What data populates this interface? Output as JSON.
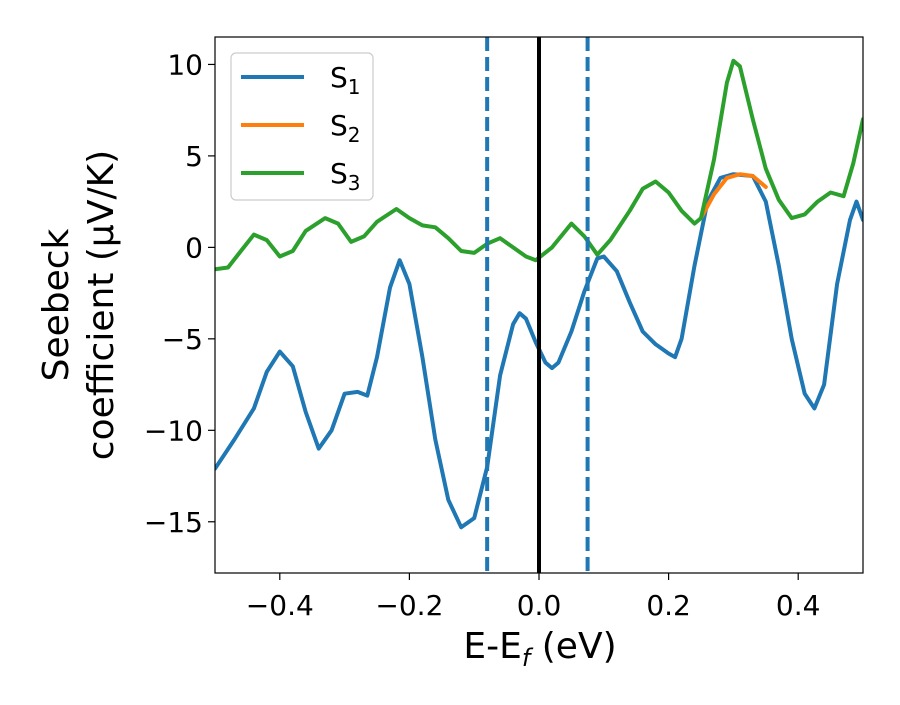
{
  "chart_data": {
    "type": "line",
    "title": "",
    "xlabel": "E-E_f (eV)",
    "xlabel_parts": {
      "main": "E-E",
      "sub": "f",
      "unit": " (eV)"
    },
    "ylabel_line1": "Seebeck",
    "ylabel_line2": "coefficient  (μV/K)",
    "xlim": [
      -0.5,
      0.5
    ],
    "ylim": [
      -17.8,
      11.5
    ],
    "xticks": [
      -0.4,
      -0.2,
      0.0,
      0.2,
      0.4
    ],
    "xtick_labels": [
      "−0.4",
      "−0.2",
      "0.0",
      "0.2",
      "0.4"
    ],
    "yticks": [
      10,
      5,
      0,
      -5,
      -10,
      -15
    ],
    "ytick_labels": [
      "10",
      "5",
      "0",
      "−5",
      "−10",
      "−15"
    ],
    "grid": false,
    "legend_position": "top-left",
    "vlines": [
      {
        "x": -0.08,
        "style": "dashed",
        "color": "#1f77b4"
      },
      {
        "x": 0.0,
        "style": "solid",
        "color": "#000000"
      },
      {
        "x": 0.075,
        "style": "dashed",
        "color": "#1f77b4"
      }
    ],
    "series": [
      {
        "name": "S1",
        "label_main": "S",
        "label_sub": "1",
        "color": "#1f77b4",
        "points": [
          [
            -0.5,
            -12.1
          ],
          [
            -0.47,
            -10.5
          ],
          [
            -0.44,
            -8.8
          ],
          [
            -0.42,
            -6.8
          ],
          [
            -0.4,
            -5.7
          ],
          [
            -0.38,
            -6.5
          ],
          [
            -0.36,
            -9.0
          ],
          [
            -0.34,
            -11.0
          ],
          [
            -0.32,
            -10.0
          ],
          [
            -0.3,
            -8.0
          ],
          [
            -0.28,
            -7.9
          ],
          [
            -0.265,
            -8.1
          ],
          [
            -0.25,
            -6.0
          ],
          [
            -0.23,
            -2.2
          ],
          [
            -0.215,
            -0.7
          ],
          [
            -0.2,
            -2.0
          ],
          [
            -0.18,
            -6.0
          ],
          [
            -0.16,
            -10.5
          ],
          [
            -0.14,
            -13.8
          ],
          [
            -0.12,
            -15.3
          ],
          [
            -0.1,
            -14.8
          ],
          [
            -0.08,
            -12.0
          ],
          [
            -0.06,
            -7.0
          ],
          [
            -0.04,
            -4.2
          ],
          [
            -0.03,
            -3.6
          ],
          [
            -0.02,
            -3.9
          ],
          [
            -0.005,
            -5.2
          ],
          [
            0.01,
            -6.3
          ],
          [
            0.02,
            -6.6
          ],
          [
            0.03,
            -6.3
          ],
          [
            0.05,
            -4.6
          ],
          [
            0.07,
            -2.4
          ],
          [
            0.09,
            -0.6
          ],
          [
            0.1,
            -0.5
          ],
          [
            0.12,
            -1.3
          ],
          [
            0.14,
            -3.0
          ],
          [
            0.16,
            -4.6
          ],
          [
            0.18,
            -5.3
          ],
          [
            0.2,
            -5.8
          ],
          [
            0.21,
            -6.0
          ],
          [
            0.22,
            -5.0
          ],
          [
            0.24,
            -1.0
          ],
          [
            0.26,
            2.5
          ],
          [
            0.28,
            3.8
          ],
          [
            0.3,
            4.0
          ],
          [
            0.33,
            3.9
          ],
          [
            0.35,
            2.5
          ],
          [
            0.37,
            -1.0
          ],
          [
            0.39,
            -5.0
          ],
          [
            0.41,
            -8.0
          ],
          [
            0.425,
            -8.8
          ],
          [
            0.44,
            -7.5
          ],
          [
            0.46,
            -2.0
          ],
          [
            0.48,
            1.5
          ],
          [
            0.49,
            2.5
          ],
          [
            0.5,
            1.5
          ]
        ]
      },
      {
        "name": "S2",
        "label_main": "S",
        "label_sub": "2",
        "color": "#ff7f0e",
        "points": [
          [
            0.25,
            1.6
          ],
          [
            0.27,
            2.9
          ],
          [
            0.29,
            3.8
          ],
          [
            0.31,
            4.0
          ],
          [
            0.33,
            3.9
          ],
          [
            0.35,
            3.3
          ]
        ]
      },
      {
        "name": "S3",
        "label_main": "S",
        "label_sub": "3",
        "color": "#2ca02c",
        "points": [
          [
            -0.5,
            -1.2
          ],
          [
            -0.48,
            -1.1
          ],
          [
            -0.46,
            -0.2
          ],
          [
            -0.44,
            0.7
          ],
          [
            -0.42,
            0.4
          ],
          [
            -0.4,
            -0.5
          ],
          [
            -0.38,
            -0.2
          ],
          [
            -0.36,
            0.9
          ],
          [
            -0.33,
            1.6
          ],
          [
            -0.31,
            1.3
          ],
          [
            -0.29,
            0.3
          ],
          [
            -0.27,
            0.6
          ],
          [
            -0.25,
            1.4
          ],
          [
            -0.22,
            2.1
          ],
          [
            -0.2,
            1.6
          ],
          [
            -0.18,
            1.2
          ],
          [
            -0.16,
            1.1
          ],
          [
            -0.14,
            0.5
          ],
          [
            -0.12,
            -0.2
          ],
          [
            -0.1,
            -0.3
          ],
          [
            -0.08,
            0.2
          ],
          [
            -0.06,
            0.5
          ],
          [
            -0.04,
            0.0
          ],
          [
            -0.02,
            -0.5
          ],
          [
            -0.005,
            -0.7
          ],
          [
            0.02,
            0.0
          ],
          [
            0.05,
            1.3
          ],
          [
            0.07,
            0.6
          ],
          [
            0.09,
            -0.4
          ],
          [
            0.11,
            0.4
          ],
          [
            0.14,
            2.0
          ],
          [
            0.16,
            3.2
          ],
          [
            0.18,
            3.6
          ],
          [
            0.2,
            3.0
          ],
          [
            0.22,
            2.0
          ],
          [
            0.24,
            1.3
          ],
          [
            0.25,
            1.6
          ],
          [
            0.27,
            4.8
          ],
          [
            0.29,
            9.0
          ],
          [
            0.3,
            10.2
          ],
          [
            0.31,
            9.9
          ],
          [
            0.33,
            7.0
          ],
          [
            0.35,
            4.3
          ],
          [
            0.37,
            2.6
          ],
          [
            0.39,
            1.6
          ],
          [
            0.41,
            1.8
          ],
          [
            0.43,
            2.5
          ],
          [
            0.45,
            3.0
          ],
          [
            0.47,
            2.8
          ],
          [
            0.485,
            4.6
          ],
          [
            0.5,
            7.0
          ]
        ]
      }
    ]
  }
}
